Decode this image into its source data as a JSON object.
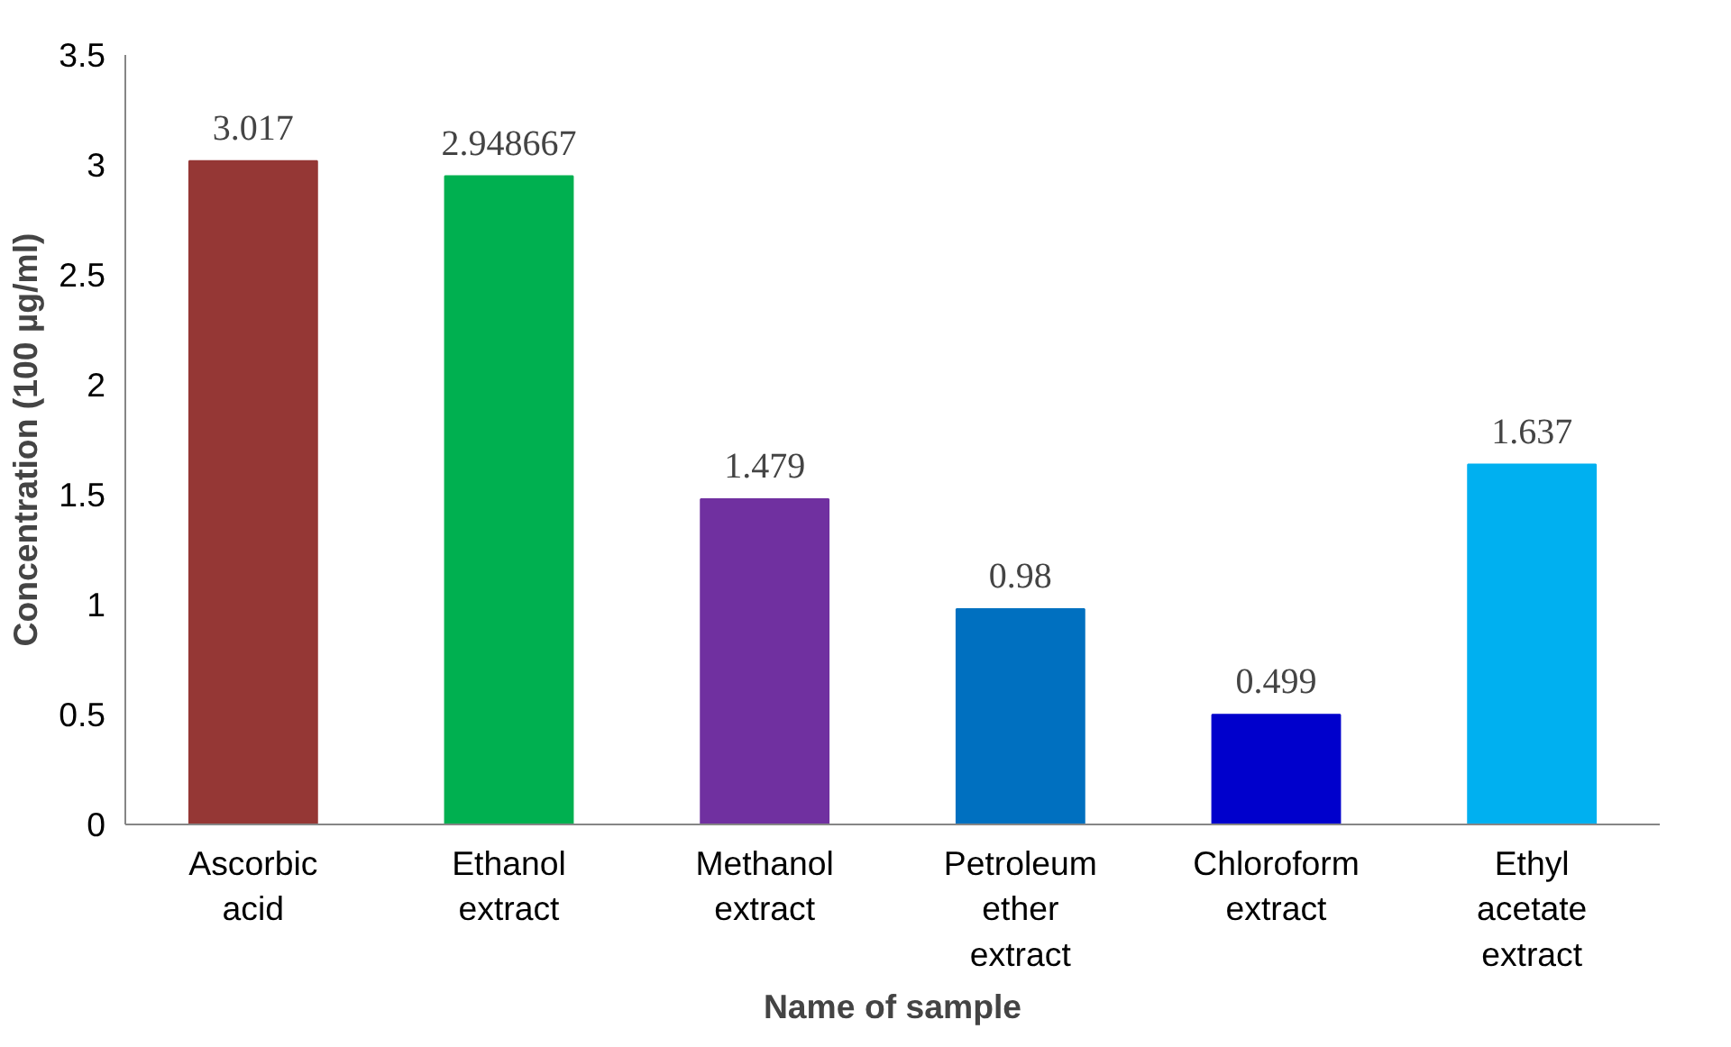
{
  "chart_data": {
    "type": "bar",
    "xlabel": "Name of sample",
    "ylabel": "Concentration (100 µg/ml)",
    "categories": [
      "Ascorbic acid",
      "Ethanol extract",
      "Methanol extract",
      "Petroleum ether extract",
      "Chloroform extract",
      "Ethyl acetate extract"
    ],
    "values": [
      3.017,
      2.948667,
      1.479,
      0.98,
      0.499,
      1.637
    ],
    "colors": [
      "#953735",
      "#00b050",
      "#7030a0",
      "#0070c0",
      "#0000cc",
      "#00b0f0"
    ],
    "ylim": [
      0,
      3.5
    ],
    "yticks": [
      0,
      0.5,
      1,
      1.5,
      2,
      2.5,
      3,
      3.5
    ],
    "grid": false,
    "data_labels": true
  }
}
